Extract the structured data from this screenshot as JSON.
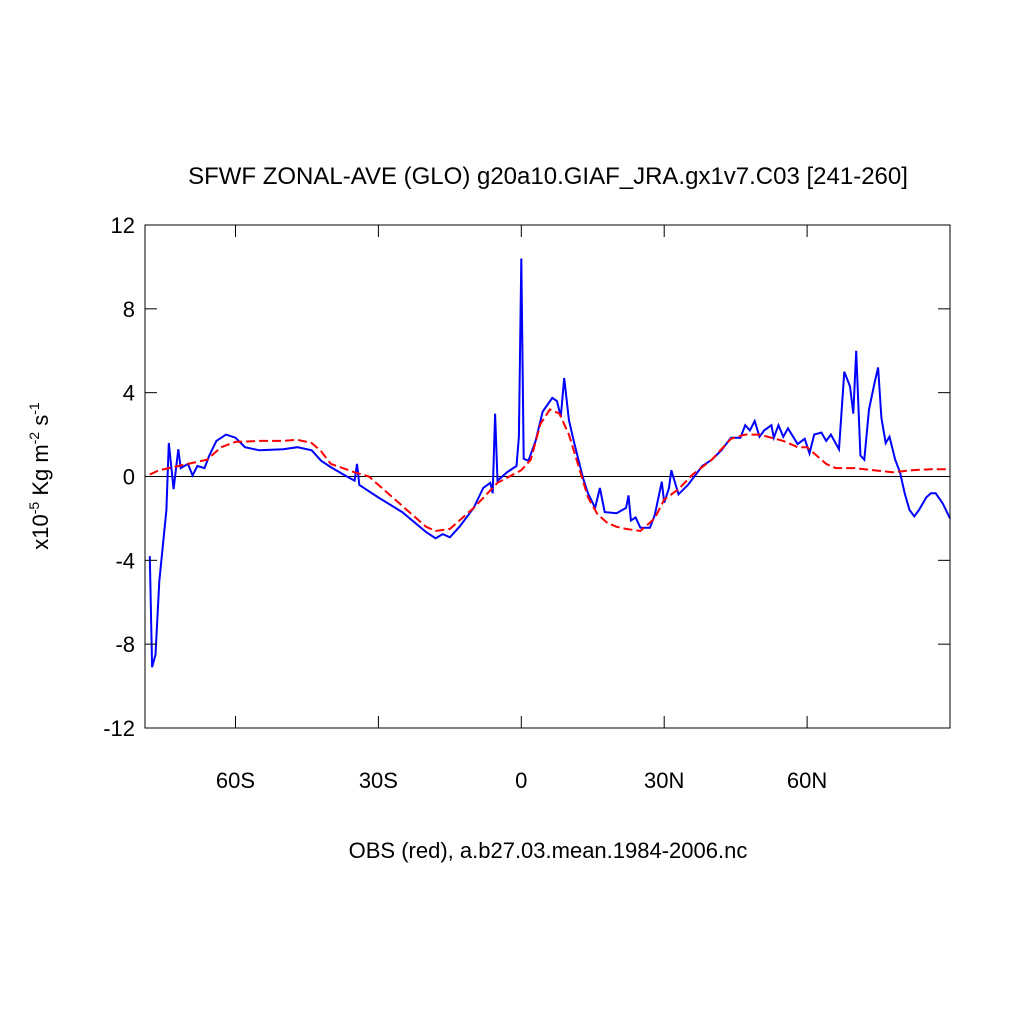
{
  "chart_data": {
    "type": "line",
    "title": "SFWF ZONAL-AVE (GLO) g20a10.GIAF_JRA.gx1v7.C03 [241-260]",
    "xlabel": "OBS (red), a.b27.03.mean.1984-2006.nc",
    "ylabel": [
      "x10",
      "-5",
      " Kg m",
      "-2",
      " s",
      "-1"
    ],
    "xlim": [
      -79,
      90
    ],
    "ylim": [
      -12,
      12
    ],
    "xticks": [
      {
        "value": -60,
        "label": "60S"
      },
      {
        "value": -30,
        "label": "30S"
      },
      0,
      {
        "value": 30,
        "label": "30N"
      },
      {
        "value": 60,
        "label": "60N"
      }
    ],
    "yticks": [
      12,
      8,
      4,
      0,
      -4,
      -8,
      -12
    ],
    "series": [
      {
        "color": "#0000ff",
        "style": "solid",
        "x": [
          -78,
          -77.5,
          -76.8,
          -76,
          -74.5,
          -74,
          -73,
          -72,
          -71.5,
          -70,
          -69,
          -68,
          -66.5,
          -65.5,
          -64,
          -62,
          -60,
          -58,
          -55,
          -50,
          -47,
          -44,
          -42,
          -40,
          -37,
          -35,
          -34.5,
          -34,
          -30,
          -25,
          -20,
          -18,
          -16.5,
          -15,
          -13,
          -10,
          -8,
          -6.5,
          -6,
          -5.5,
          -5,
          -3,
          -1,
          -0.5,
          0,
          0.5,
          1.5,
          3,
          4.5,
          6.5,
          7.5,
          8.3,
          9,
          10,
          11,
          13,
          14,
          15.5,
          16.5,
          17.5,
          20,
          22,
          22.5,
          23,
          24,
          25,
          27,
          28,
          29.5,
          30,
          31,
          31.5,
          33,
          35,
          38,
          40,
          42,
          44,
          46,
          47,
          48,
          49,
          50,
          51,
          52.5,
          53,
          54,
          55,
          56,
          58,
          59.5,
          60.5,
          61.5,
          63,
          64,
          65,
          66.7,
          67.8,
          69,
          69.7,
          70.3,
          71.2,
          72,
          73,
          74.2,
          74.9,
          75.6,
          76.5,
          77.3,
          78.5,
          79.5,
          80.5,
          81.5,
          82.5,
          83.5,
          85,
          86,
          87,
          88.5,
          90
        ],
        "values": [
          -3.8,
          -9.1,
          -8.5,
          -5,
          -1.6,
          1.6,
          -0.6,
          1.3,
          0.4,
          0.6,
          0.05,
          0.5,
          0.4,
          1.0,
          1.7,
          2.0,
          1.85,
          1.4,
          1.25,
          1.3,
          1.4,
          1.25,
          0.75,
          0.45,
          0.05,
          -0.2,
          0.6,
          -0.4,
          -1.0,
          -1.7,
          -2.65,
          -2.95,
          -2.75,
          -2.9,
          -2.4,
          -1.5,
          -0.55,
          -0.3,
          -0.8,
          3.0,
          -0.2,
          0.2,
          0.5,
          1.9,
          10.4,
          0.85,
          0.75,
          1.7,
          3.1,
          3.75,
          3.6,
          2.85,
          4.7,
          2.7,
          1.7,
          -0.1,
          -0.8,
          -1.5,
          -0.55,
          -1.7,
          -1.75,
          -1.5,
          -0.9,
          -2.1,
          -1.95,
          -2.45,
          -2.45,
          -1.85,
          -0.25,
          -1.25,
          -0.55,
          0.3,
          -0.85,
          -0.4,
          0.5,
          0.8,
          1.25,
          1.85,
          1.85,
          2.45,
          2.2,
          2.65,
          1.9,
          2.2,
          2.45,
          1.85,
          2.45,
          1.9,
          2.3,
          1.55,
          1.8,
          1.1,
          2.0,
          2.1,
          1.7,
          2.0,
          1.3,
          5.0,
          4.3,
          3.0,
          6.0,
          1.0,
          0.8,
          3.2,
          4.5,
          5.2,
          2.8,
          1.6,
          1.9,
          0.8,
          0.2,
          -0.8,
          -1.6,
          -1.9,
          -1.6,
          -1.0,
          -0.8,
          -0.8,
          -1.3,
          -2.0
        ]
      },
      {
        "color": "#ff0000",
        "style": "dashed",
        "x": [
          -78,
          -76,
          -74,
          -70,
          -66,
          -63,
          -60,
          -55,
          -50,
          -47,
          -44,
          -42,
          -40,
          -35,
          -32,
          -30,
          -25,
          -20,
          -18,
          -15,
          -10,
          -5,
          0,
          2,
          4,
          6,
          8,
          10,
          12,
          14,
          16,
          18,
          20,
          22,
          25,
          28,
          30,
          33,
          36,
          40,
          44,
          47,
          50,
          55,
          58,
          60,
          62,
          64,
          66,
          70,
          74,
          78,
          82,
          86,
          90
        ],
        "values": [
          0.1,
          0.3,
          0.4,
          0.6,
          0.8,
          1.4,
          1.65,
          1.7,
          1.7,
          1.75,
          1.6,
          1.2,
          0.6,
          0.2,
          0.0,
          -0.4,
          -1.4,
          -2.4,
          -2.6,
          -2.5,
          -1.5,
          -0.3,
          0.3,
          0.8,
          2.5,
          3.2,
          3.0,
          2.0,
          0.5,
          -1.0,
          -1.8,
          -2.2,
          -2.4,
          -2.5,
          -2.6,
          -2.0,
          -1.1,
          -0.6,
          0.1,
          0.8,
          1.8,
          2.0,
          2.0,
          1.7,
          1.4,
          1.4,
          1.0,
          0.6,
          0.4,
          0.4,
          0.3,
          0.2,
          0.3,
          0.35,
          0.35
        ]
      }
    ]
  }
}
